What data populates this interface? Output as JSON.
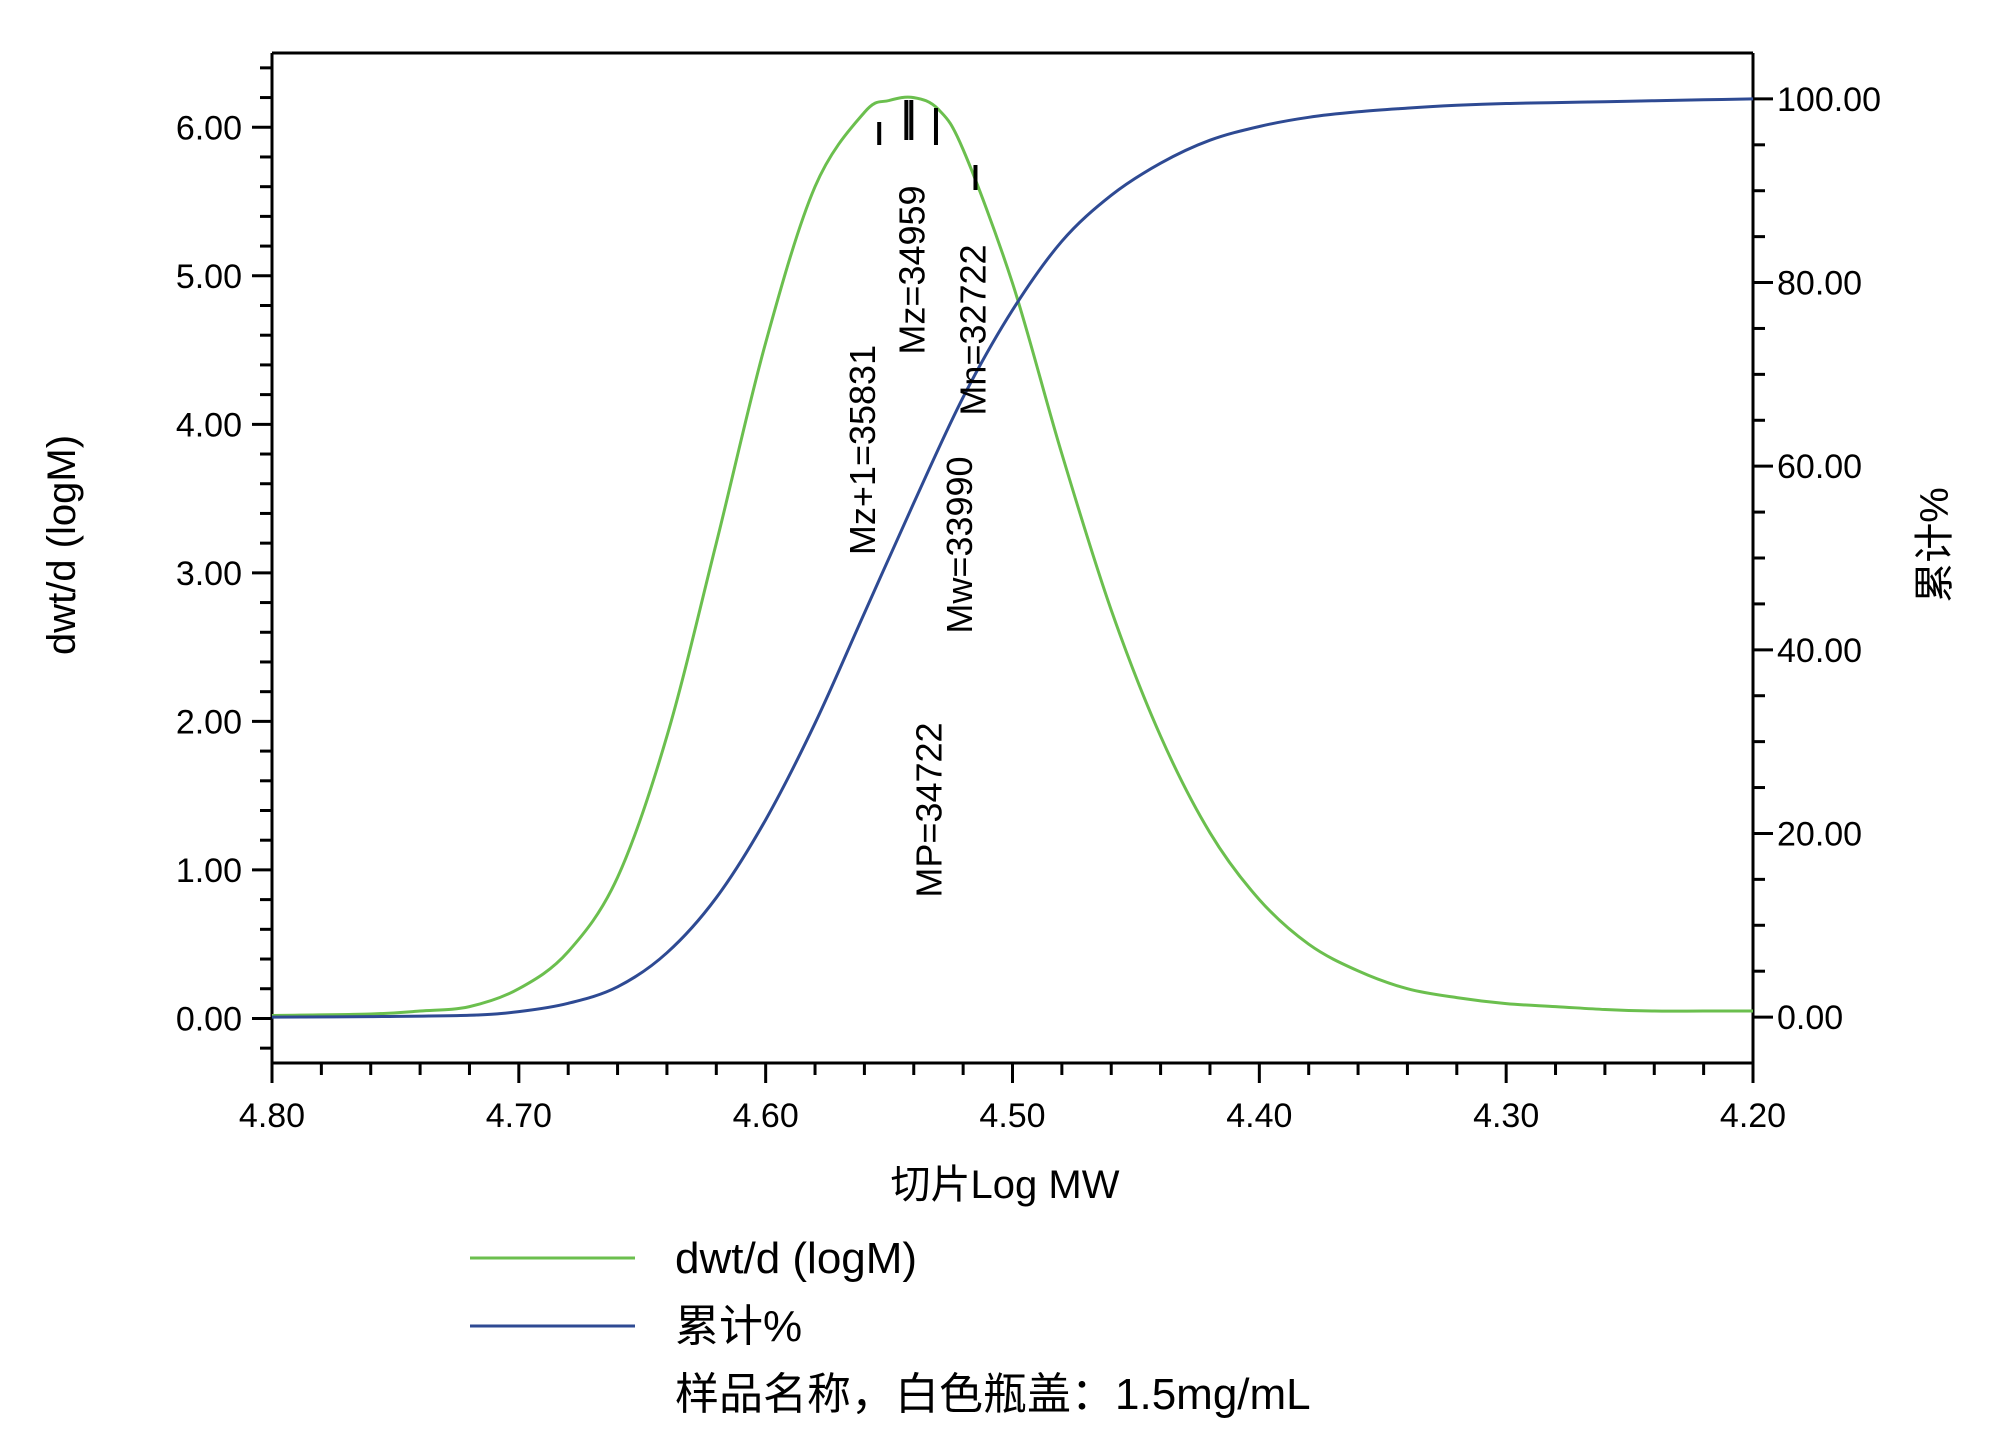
{
  "chart_data": {
    "type": "line",
    "xlabel": "切片Log MW",
    "ylabel_left": "dwt/d (logM)",
    "ylabel_right": "累计%",
    "xlim": [
      4.8,
      4.2
    ],
    "x_reversed": true,
    "ylim_left": [
      -0.3,
      6.5
    ],
    "ylim_right": [
      -5.0,
      105.0
    ],
    "x_ticks": [
      "4.80",
      "4.70",
      "4.60",
      "4.50",
      "4.40",
      "4.30",
      "4.20"
    ],
    "y_left_ticks": [
      "0.00",
      "1.00",
      "2.00",
      "3.00",
      "4.00",
      "5.00",
      "6.00"
    ],
    "y_right_ticks": [
      "0.00",
      "20.00",
      "40.00",
      "60.00",
      "80.00",
      "100.00"
    ],
    "grid": false,
    "legend_position": "bottom",
    "series": [
      {
        "name": "dwt/d (logM)",
        "color": "#6bbf4e",
        "axis": "left",
        "x": [
          4.8,
          4.76,
          4.74,
          4.72,
          4.7,
          4.68,
          4.66,
          4.64,
          4.62,
          4.6,
          4.58,
          4.56,
          4.55,
          4.54,
          4.53,
          4.52,
          4.5,
          4.48,
          4.46,
          4.44,
          4.42,
          4.4,
          4.38,
          4.36,
          4.34,
          4.32,
          4.3,
          4.28,
          4.26,
          4.24,
          4.22,
          4.2
        ],
        "values": [
          0.02,
          0.03,
          0.05,
          0.08,
          0.2,
          0.45,
          0.95,
          1.9,
          3.2,
          4.55,
          5.6,
          6.1,
          6.18,
          6.2,
          6.12,
          5.85,
          4.95,
          3.8,
          2.75,
          1.9,
          1.25,
          0.8,
          0.5,
          0.32,
          0.2,
          0.14,
          0.1,
          0.08,
          0.06,
          0.05,
          0.05,
          0.05
        ]
      },
      {
        "name": "累计%",
        "color": "#2e4a93",
        "axis": "right",
        "x": [
          4.8,
          4.76,
          4.72,
          4.7,
          4.68,
          4.66,
          4.64,
          4.62,
          4.6,
          4.58,
          4.56,
          4.54,
          4.52,
          4.5,
          4.48,
          4.46,
          4.44,
          4.42,
          4.4,
          4.38,
          4.36,
          4.34,
          4.32,
          4.3,
          4.28,
          4.26,
          4.24,
          4.22,
          4.2
        ],
        "values": [
          0.0,
          0.05,
          0.2,
          0.6,
          1.5,
          3.3,
          7.0,
          13.0,
          21.5,
          32.0,
          44.0,
          56.0,
          67.5,
          77.0,
          84.5,
          89.5,
          93.0,
          95.5,
          97.0,
          98.0,
          98.6,
          99.0,
          99.3,
          99.5,
          99.6,
          99.7,
          99.8,
          99.9,
          100.0
        ]
      }
    ],
    "annotations": [
      {
        "label": "Mz+1=35831",
        "x": 4.554
      },
      {
        "label": "MP=34722",
        "x": 4.541
      },
      {
        "label": "Mz=34959",
        "x": 4.543
      },
      {
        "label": "Mw=33990",
        "x": 4.531
      },
      {
        "label": "Mn=32722",
        "x": 4.515
      }
    ],
    "legend": {
      "entries": [
        "dwt/d (logM)",
        "累计%"
      ],
      "note": "样品名称，白色瓶盖：1.5mg/mL"
    }
  }
}
